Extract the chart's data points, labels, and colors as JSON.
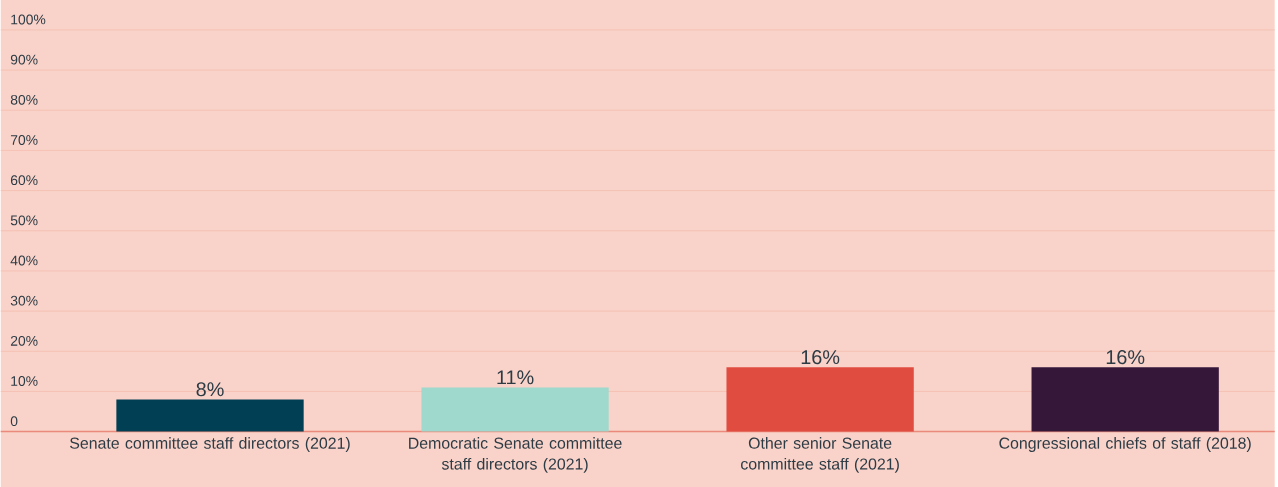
{
  "chart_data": {
    "type": "bar",
    "categories": [
      "Senate committee staff directors (2021)",
      "Democratic Senate committee staff directors (2021)",
      "Other senior Senate committee staff (2021)",
      "Congressional chiefs of staff (2018)"
    ],
    "values": [
      8,
      11,
      16,
      16
    ],
    "colors": [
      "#003f54",
      "#9fd8cc",
      "#e04c40",
      "#35173a"
    ],
    "value_labels": [
      "8%",
      "11%",
      "16%",
      "16%"
    ],
    "ylim": [
      0,
      100
    ],
    "yticks": [
      0,
      {
        "value": 10,
        "label": "10%"
      },
      {
        "value": 20,
        "label": "20%"
      },
      {
        "value": 30,
        "label": "30%"
      },
      {
        "value": 40,
        "label": "40%"
      },
      {
        "value": 50,
        "label": "50%"
      },
      {
        "value": 60,
        "label": "60%"
      },
      {
        "value": 70,
        "label": "70%"
      },
      {
        "value": 80,
        "label": "80%"
      },
      {
        "value": 90,
        "label": "90%"
      },
      {
        "value": 100,
        "label": "100%"
      }
    ],
    "grid": "y"
  }
}
